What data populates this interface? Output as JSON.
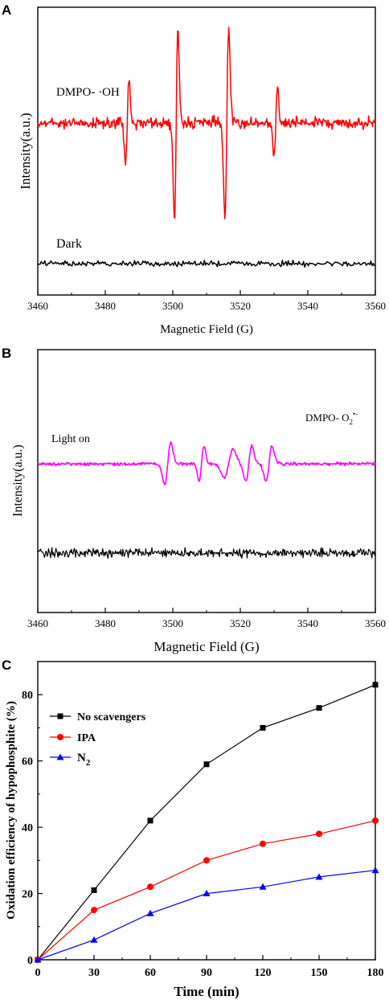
{
  "panels": [
    {
      "letter": "A",
      "type": "line",
      "xlabel": "Magnetic Field (G)",
      "ylabel": "Intensity(a.u.)",
      "xlim": [
        3460,
        3560
      ],
      "xticks": [
        "3460",
        "3480",
        "3500",
        "3520",
        "3540",
        "3560"
      ],
      "series": [
        {
          "name": "DMPO- ·OH",
          "color": "#ff0000"
        },
        {
          "name": "Dark",
          "color": "#000000"
        }
      ]
    },
    {
      "letter": "B",
      "type": "line",
      "xlabel": "Magnetic Field (G)",
      "ylabel": "Intensity(a.u.)",
      "xlim": [
        3460,
        3560
      ],
      "xticks": [
        "3460",
        "3480",
        "3500",
        "3520",
        "3540",
        "3560"
      ],
      "annotation": {
        "base": "DMPO- O",
        "sub": "2",
        "sup": "•-"
      },
      "series": [
        {
          "name": "Light on",
          "color": "#ff00ff"
        },
        {
          "name": "",
          "color": "#000000"
        }
      ]
    }
  ],
  "chart_data": {
    "letter": "C",
    "type": "line",
    "xlabel": "Time (min)",
    "ylabel": "Oxidation efficiency of hypophosphite (%)",
    "xlim": [
      0,
      180
    ],
    "ylim": [
      0,
      90
    ],
    "x": [
      0,
      30,
      60,
      90,
      120,
      150,
      180
    ],
    "xticks": [
      "0",
      "30",
      "60",
      "90",
      "120",
      "150",
      "180"
    ],
    "yticks": [
      "0",
      "20",
      "40",
      "60",
      "80"
    ],
    "series": [
      {
        "name": "No scavengers",
        "marker": "square",
        "color": "#000000",
        "values": [
          0,
          21,
          42,
          59,
          70,
          76,
          83
        ]
      },
      {
        "name": "IPA",
        "marker": "circle",
        "color": "#ff0000",
        "values": [
          0,
          15,
          22,
          30,
          35,
          38,
          42
        ]
      },
      {
        "name": "N",
        "name_sub": "2",
        "marker": "triangle",
        "color": "#0000ff",
        "values": [
          0,
          6,
          14,
          20,
          22,
          25,
          27
        ]
      }
    ],
    "legend": "top-left"
  }
}
